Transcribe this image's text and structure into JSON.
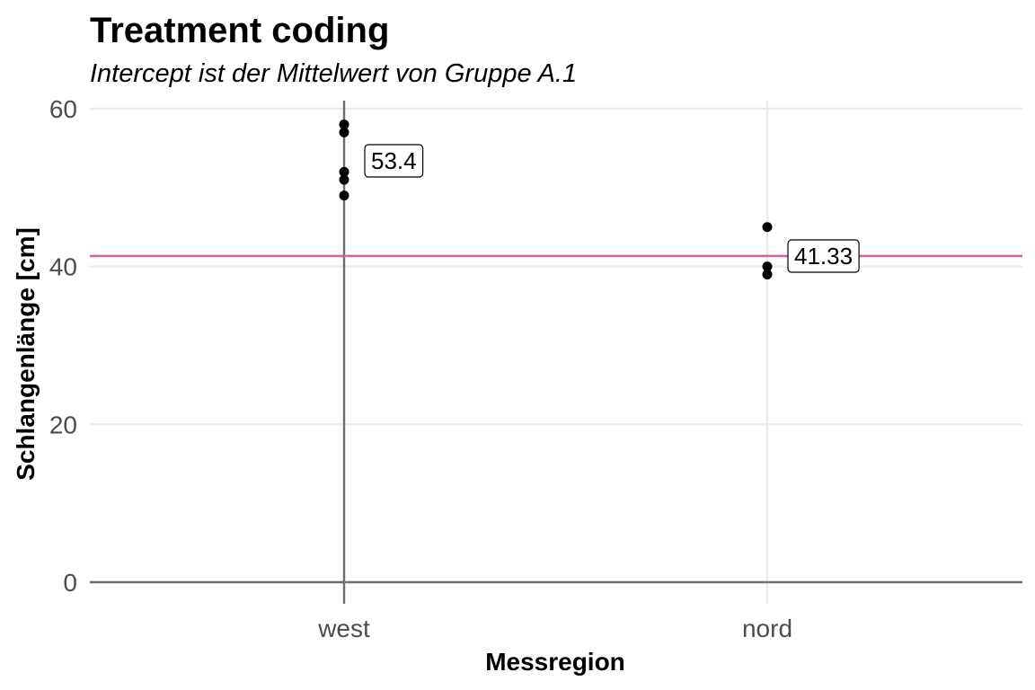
{
  "chart_data": {
    "type": "scatter",
    "title": "Treatment coding",
    "subtitle": "Intercept ist der Mittelwert von Gruppe A.1",
    "xlabel": "Messregion",
    "ylabel": "Schlangenlänge [cm]",
    "categories": [
      "west",
      "nord"
    ],
    "ylim": [
      0,
      60
    ],
    "yticks": [
      0,
      20,
      40,
      60
    ],
    "grid": true,
    "points": [
      {
        "x": "west",
        "y": 58
      },
      {
        "x": "west",
        "y": 57
      },
      {
        "x": "west",
        "y": 52
      },
      {
        "x": "west",
        "y": 51
      },
      {
        "x": "west",
        "y": 49
      },
      {
        "x": "nord",
        "y": 45
      },
      {
        "x": "nord",
        "y": 40
      },
      {
        "x": "nord",
        "y": 39
      }
    ],
    "group_means": [
      {
        "x": "west",
        "value": 53.4,
        "label": "53.4"
      },
      {
        "x": "nord",
        "value": 41.33,
        "label": "41.33"
      }
    ],
    "hline": {
      "y": 41.33,
      "color": "#cc66aa"
    },
    "vline": {
      "x": "west"
    },
    "colors": {
      "points": "#000000",
      "hline": "#cc66aa",
      "grid": "#ebebeb",
      "axis": "#6e6e6e"
    }
  }
}
